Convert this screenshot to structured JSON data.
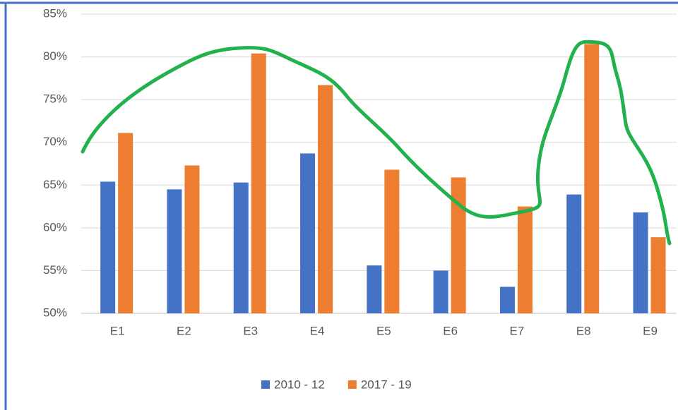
{
  "chart_data": {
    "type": "bar",
    "categories": [
      "E1",
      "E2",
      "E3",
      "E4",
      "E5",
      "E6",
      "E7",
      "E8",
      "E9"
    ],
    "series": [
      {
        "name": "2010 - 12",
        "color": "#4472c4",
        "values": [
          65.4,
          64.5,
          65.3,
          68.7,
          55.6,
          55.0,
          53.1,
          63.9,
          61.8
        ]
      },
      {
        "name": "2017 - 19",
        "color": "#ed7d31",
        "values": [
          71.1,
          67.3,
          80.4,
          76.7,
          66.8,
          65.9,
          62.5,
          81.5,
          58.9
        ]
      }
    ],
    "ylim": [
      50,
      85
    ],
    "yticks": [
      {
        "value": 50,
        "label": "50%"
      },
      {
        "value": 55,
        "label": "55%"
      },
      {
        "value": 60,
        "label": "60%"
      },
      {
        "value": 65,
        "label": "65%"
      },
      {
        "value": 70,
        "label": "70%"
      },
      {
        "value": 75,
        "label": "75%"
      },
      {
        "value": 80,
        "label": "80%"
      },
      {
        "value": 85,
        "label": "85%"
      }
    ],
    "grid": true,
    "legend": "bottom"
  }
}
